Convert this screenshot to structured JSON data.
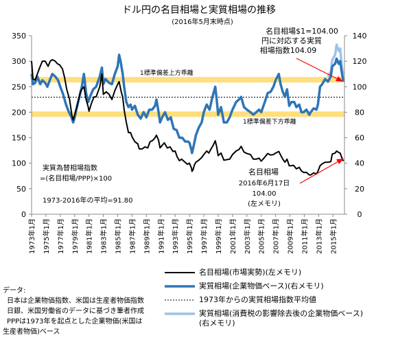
{
  "title": "ドル円の名目相場と実質相場の推移",
  "subtitle": "(2016年5月末時点)",
  "chart_data": {
    "type": "line",
    "left_axis": {
      "min": 0,
      "max": 350,
      "ticks": [
        0,
        50,
        100,
        150,
        200,
        250,
        300,
        350
      ]
    },
    "right_axis": {
      "min": 0,
      "max": 140,
      "ticks": [
        0,
        20,
        40,
        60,
        80,
        100,
        120,
        140
      ]
    },
    "x_range": [
      1973,
      2016.6
    ],
    "x_tick_labels": [
      "1973年1月",
      "1975年1月",
      "1977年1月",
      "1979年1月",
      "1981年1月",
      "1983年1月",
      "1985年1月",
      "1987年1月",
      "1989年1月",
      "1991年1月",
      "1993年1月",
      "1995年1月",
      "1997年1月",
      "1999年1月",
      "2001年1月",
      "2003年1月",
      "2005年1月",
      "2007年1月",
      "2009年1月",
      "2011年1月",
      "2013年1月",
      "2015年1月"
    ],
    "grid": false,
    "series": [
      {
        "name": "名目相場(市場実勢)(左メモリ)",
        "axis": "left",
        "color": "#000000",
        "points": [
          [
            1973.0,
            300
          ],
          [
            1973.2,
            265
          ],
          [
            1973.5,
            263
          ],
          [
            1973.8,
            275
          ],
          [
            1974.2,
            290
          ],
          [
            1974.5,
            300
          ],
          [
            1974.9,
            300
          ],
          [
            1975.3,
            290
          ],
          [
            1975.6,
            300
          ],
          [
            1975.9,
            303
          ],
          [
            1976.3,
            300
          ],
          [
            1976.6,
            295
          ],
          [
            1976.9,
            293
          ],
          [
            1977.3,
            285
          ],
          [
            1977.6,
            268
          ],
          [
            1977.9,
            245
          ],
          [
            1978.3,
            225
          ],
          [
            1978.6,
            195
          ],
          [
            1978.8,
            185
          ],
          [
            1979.1,
            200
          ],
          [
            1979.4,
            215
          ],
          [
            1979.8,
            240
          ],
          [
            1980.0,
            245
          ],
          [
            1980.3,
            250
          ],
          [
            1980.6,
            225
          ],
          [
            1980.9,
            210
          ],
          [
            1981.0,
            202
          ],
          [
            1981.4,
            220
          ],
          [
            1981.7,
            230
          ],
          [
            1982.0,
            230
          ],
          [
            1982.5,
            250
          ],
          [
            1982.8,
            275
          ],
          [
            1983.0,
            235
          ],
          [
            1983.4,
            240
          ],
          [
            1983.8,
            235
          ],
          [
            1984.2,
            225
          ],
          [
            1984.6,
            242
          ],
          [
            1985.0,
            255
          ],
          [
            1985.2,
            260
          ],
          [
            1985.5,
            240
          ],
          [
            1985.7,
            230
          ],
          [
            1985.9,
            205
          ],
          [
            1986.2,
            180
          ],
          [
            1986.5,
            160
          ],
          [
            1986.8,
            160
          ],
          [
            1987.0,
            152
          ],
          [
            1987.4,
            142
          ],
          [
            1987.8,
            138
          ],
          [
            1988.0,
            128
          ],
          [
            1988.4,
            128
          ],
          [
            1988.8,
            132
          ],
          [
            1989.2,
            130
          ],
          [
            1989.5,
            142
          ],
          [
            1989.9,
            145
          ],
          [
            1990.2,
            150
          ],
          [
            1990.4,
            155
          ],
          [
            1990.7,
            145
          ],
          [
            1990.9,
            130
          ],
          [
            1991.2,
            135
          ],
          [
            1991.5,
            140
          ],
          [
            1991.9,
            130
          ],
          [
            1992.3,
            132
          ],
          [
            1992.7,
            123
          ],
          [
            1993.0,
            124
          ],
          [
            1993.3,
            112
          ],
          [
            1993.6,
            105
          ],
          [
            1993.9,
            108
          ],
          [
            1994.3,
            103
          ],
          [
            1994.7,
            98
          ],
          [
            1995.0,
            100
          ],
          [
            1995.3,
            90
          ],
          [
            1995.35,
            84
          ],
          [
            1995.5,
            87
          ],
          [
            1995.7,
            97
          ],
          [
            1995.9,
            102
          ],
          [
            1996.3,
            106
          ],
          [
            1996.7,
            111
          ],
          [
            1997.0,
            117
          ],
          [
            1997.4,
            124
          ],
          [
            1997.7,
            120
          ],
          [
            1998.0,
            128
          ],
          [
            1998.3,
            135
          ],
          [
            1998.6,
            144
          ],
          [
            1998.8,
            132
          ],
          [
            1999.0,
            115
          ],
          [
            1999.4,
            120
          ],
          [
            1999.8,
            106
          ],
          [
            2000.2,
            107
          ],
          [
            2000.6,
            108
          ],
          [
            2001.0,
            117
          ],
          [
            2001.5,
            124
          ],
          [
            2001.9,
            127
          ],
          [
            2002.2,
            133
          ],
          [
            2002.6,
            122
          ],
          [
            2003.0,
            119
          ],
          [
            2003.5,
            117
          ],
          [
            2003.9,
            108
          ],
          [
            2004.3,
            108
          ],
          [
            2004.7,
            110
          ],
          [
            2005.0,
            104
          ],
          [
            2005.5,
            112
          ],
          [
            2005.9,
            119
          ],
          [
            2006.3,
            116
          ],
          [
            2006.7,
            117
          ],
          [
            2007.0,
            120
          ],
          [
            2007.45,
            123
          ],
          [
            2007.7,
            116
          ],
          [
            2008.0,
            108
          ],
          [
            2008.3,
            102
          ],
          [
            2008.6,
            108
          ],
          [
            2008.9,
            95
          ],
          [
            2009.2,
            95
          ],
          [
            2009.5,
            96
          ],
          [
            2009.9,
            89
          ],
          [
            2010.3,
            92
          ],
          [
            2010.6,
            85
          ],
          [
            2010.9,
            82
          ],
          [
            2011.3,
            82
          ],
          [
            2011.7,
            77
          ],
          [
            2011.9,
            77
          ],
          [
            2012.3,
            81
          ],
          [
            2012.7,
            79
          ],
          [
            2012.9,
            84
          ],
          [
            2013.2,
            95
          ],
          [
            2013.5,
            99
          ],
          [
            2013.9,
            102
          ],
          [
            2014.3,
            102
          ],
          [
            2014.7,
            103
          ],
          [
            2014.9,
            118
          ],
          [
            2015.3,
            120
          ],
          [
            2015.5,
            124
          ],
          [
            2015.8,
            121
          ],
          [
            2016.0,
            120
          ],
          [
            2016.2,
            112
          ],
          [
            2016.45,
            104
          ]
        ]
      },
      {
        "name": "実質相場(企業物価ベース)(右メモリ)",
        "axis": "right",
        "color": "#2e75b6",
        "points": [
          [
            1973.0,
            110
          ],
          [
            1973.2,
            102
          ],
          [
            1973.5,
            103
          ],
          [
            1973.8,
            108
          ],
          [
            1974.2,
            102
          ],
          [
            1974.5,
            105
          ],
          [
            1974.9,
            103
          ],
          [
            1975.2,
            100
          ],
          [
            1975.6,
            106
          ],
          [
            1975.9,
            110
          ],
          [
            1976.3,
            108
          ],
          [
            1976.7,
            105
          ],
          [
            1977.0,
            100
          ],
          [
            1977.4,
            94
          ],
          [
            1977.8,
            86
          ],
          [
            1978.2,
            80
          ],
          [
            1978.5,
            77
          ],
          [
            1978.8,
            72
          ],
          [
            1979.0,
            76
          ],
          [
            1979.4,
            86
          ],
          [
            1979.8,
            95
          ],
          [
            1980.0,
            100
          ],
          [
            1980.3,
            110
          ],
          [
            1980.6,
            95
          ],
          [
            1980.9,
            88
          ],
          [
            1981.2,
            93
          ],
          [
            1981.6,
            98
          ],
          [
            1982.0,
            100
          ],
          [
            1982.5,
            108
          ],
          [
            1982.8,
            115
          ],
          [
            1983.0,
            102
          ],
          [
            1983.3,
            106
          ],
          [
            1983.8,
            103
          ],
          [
            1984.2,
            102
          ],
          [
            1984.6,
            110
          ],
          [
            1985.0,
            116
          ],
          [
            1985.2,
            125
          ],
          [
            1985.4,
            120
          ],
          [
            1985.7,
            110
          ],
          [
            1985.9,
            100
          ],
          [
            1986.2,
            88
          ],
          [
            1986.5,
            84
          ],
          [
            1986.8,
            86
          ],
          [
            1987.0,
            82
          ],
          [
            1987.4,
            85
          ],
          [
            1987.8,
            78
          ],
          [
            1988.2,
            75
          ],
          [
            1988.6,
            80
          ],
          [
            1989.0,
            76
          ],
          [
            1989.4,
            82
          ],
          [
            1989.8,
            82
          ],
          [
            1990.2,
            85
          ],
          [
            1990.4,
            90
          ],
          [
            1990.7,
            80
          ],
          [
            1990.9,
            72
          ],
          [
            1991.2,
            76
          ],
          [
            1991.6,
            80
          ],
          [
            1992.0,
            74
          ],
          [
            1992.4,
            76
          ],
          [
            1992.8,
            67
          ],
          [
            1993.2,
            66
          ],
          [
            1993.6,
            60
          ],
          [
            1994.0,
            60
          ],
          [
            1994.4,
            57
          ],
          [
            1994.8,
            57
          ],
          [
            1995.0,
            56
          ],
          [
            1995.3,
            50
          ],
          [
            1995.35,
            48
          ],
          [
            1995.6,
            54
          ],
          [
            1995.9,
            62
          ],
          [
            1996.3,
            68
          ],
          [
            1996.7,
            72
          ],
          [
            1997.0,
            80
          ],
          [
            1997.4,
            86
          ],
          [
            1997.8,
            82
          ],
          [
            1998.2,
            92
          ],
          [
            1998.6,
            100
          ],
          [
            1998.8,
            90
          ],
          [
            1999.0,
            78
          ],
          [
            1999.4,
            84
          ],
          [
            1999.8,
            72
          ],
          [
            2000.2,
            72
          ],
          [
            2000.6,
            76
          ],
          [
            2001.0,
            82
          ],
          [
            2001.5,
            88
          ],
          [
            2001.9,
            90
          ],
          [
            2002.2,
            92
          ],
          [
            2002.6,
            84
          ],
          [
            2003.0,
            82
          ],
          [
            2003.5,
            80
          ],
          [
            2003.9,
            78
          ],
          [
            2004.3,
            80
          ],
          [
            2004.7,
            82
          ],
          [
            2005.0,
            80
          ],
          [
            2005.5,
            88
          ],
          [
            2005.9,
            95
          ],
          [
            2006.3,
            96
          ],
          [
            2006.7,
            100
          ],
          [
            2007.0,
            105
          ],
          [
            2007.45,
            110
          ],
          [
            2007.7,
            102
          ],
          [
            2008.0,
            96
          ],
          [
            2008.3,
            92
          ],
          [
            2008.6,
            98
          ],
          [
            2008.9,
            85
          ],
          [
            2009.2,
            88
          ],
          [
            2009.6,
            88
          ],
          [
            2009.9,
            84
          ],
          [
            2010.3,
            86
          ],
          [
            2010.6,
            80
          ],
          [
            2010.9,
            80
          ],
          [
            2011.3,
            82
          ],
          [
            2011.7,
            78
          ],
          [
            2011.9,
            80
          ],
          [
            2012.3,
            83
          ],
          [
            2012.7,
            82
          ],
          [
            2012.9,
            86
          ],
          [
            2013.2,
            100
          ],
          [
            2013.5,
            102
          ],
          [
            2013.9,
            106
          ],
          [
            2014.3,
            104
          ],
          [
            2014.7,
            108
          ],
          [
            2014.9,
            116
          ],
          [
            2015.3,
            118
          ],
          [
            2015.5,
            122
          ],
          [
            2015.8,
            118
          ],
          [
            2016.0,
            120
          ],
          [
            2016.2,
            112
          ],
          [
            2016.45,
            104.09
          ]
        ]
      },
      {
        "name": "実質相場(消費税の影響除去後の企業物価ベース)(右メモリ)",
        "axis": "right",
        "color": "#9dc3e6",
        "points": [
          [
            2014.3,
            108
          ],
          [
            2014.7,
            112
          ],
          [
            2014.9,
            121
          ],
          [
            2015.3,
            125
          ],
          [
            2015.5,
            133
          ],
          [
            2015.8,
            128
          ],
          [
            2016.0,
            130
          ],
          [
            2016.2,
            118
          ],
          [
            2016.45,
            108
          ]
        ]
      }
    ],
    "reference_lines": [
      {
        "name": "1973年からの実質相場指数平均値",
        "axis": "right",
        "value": 91.8,
        "style": "dotted"
      },
      {
        "name": "1標準偏差上方乖離",
        "axis": "right",
        "value": 105.5,
        "color": "#ffd966"
      },
      {
        "name": "1標準偏差下方乖離",
        "axis": "right",
        "value": 78.5,
        "color": "#ffd966"
      }
    ],
    "annotations": {
      "band_upper_label": "1標準偏差上方乖離",
      "band_lower_label": "1標準偏差下方乖離",
      "formula_1": "実質為替相場指数",
      "formula_2": "=(名目相場/PPP)×100",
      "average_note": "1973-2016年の平均=91.80",
      "real_callout": [
        "名目相場$1=104.00",
        "円に対応する実質",
        "相場指数104.09"
      ],
      "nominal_callout": [
        "名目相場",
        "2016年6月17日",
        "104.00",
        "(左メモリ)"
      ],
      "arrow_color": "#ff0000"
    }
  },
  "legend": [
    {
      "label": "名目相場(市場実勢)(左メモリ)",
      "color": "#000000",
      "style": "solid-thin"
    },
    {
      "label": "実質相場(企業物価ベース)(右メモリ)",
      "color": "#2e75b6",
      "style": "solid-thick"
    },
    {
      "label": "1973年からの実質相場指数平均値",
      "color": "#000000",
      "style": "dotted"
    },
    {
      "label": "実質相場(消費税の影響除去後の企業物価ベース)",
      "label_cont": "(右メモリ)",
      "color": "#9dc3e6",
      "style": "solid-thick"
    }
  ],
  "source": {
    "heading": "データ:",
    "lines": [
      "日本は企業物価指数、米国は生産者物価指数",
      "日銀、米国労働省のデータに基づき筆者作成",
      "PPPは1973年を起点とした企業物価(米国は",
      "生産者物価)ベース"
    ]
  }
}
